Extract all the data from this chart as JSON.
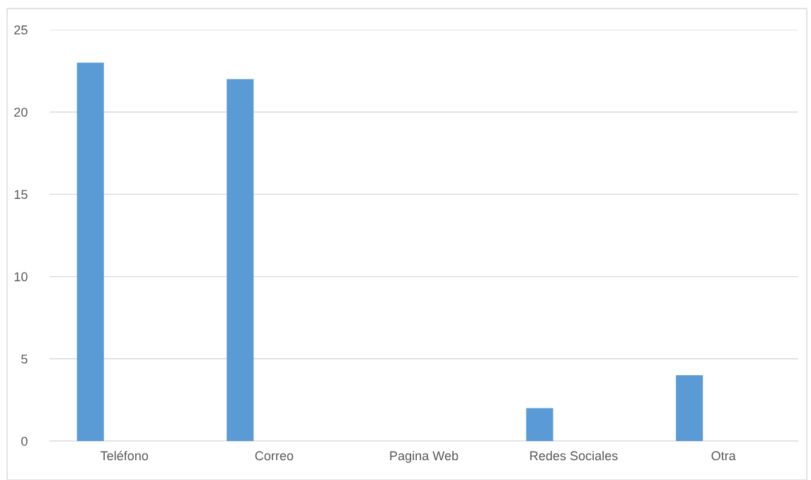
{
  "chart_data": {
    "type": "bar",
    "categories": [
      "Teléfono",
      "Correo",
      "Pagina Web",
      "Redes Sociales",
      "Otra"
    ],
    "values": [
      23,
      22,
      0,
      2,
      4
    ],
    "color": "#5b9bd5",
    "ylim": [
      0,
      25
    ],
    "yticks": [
      0,
      5,
      10,
      15,
      20,
      25
    ],
    "grid": "y",
    "legend": false
  }
}
